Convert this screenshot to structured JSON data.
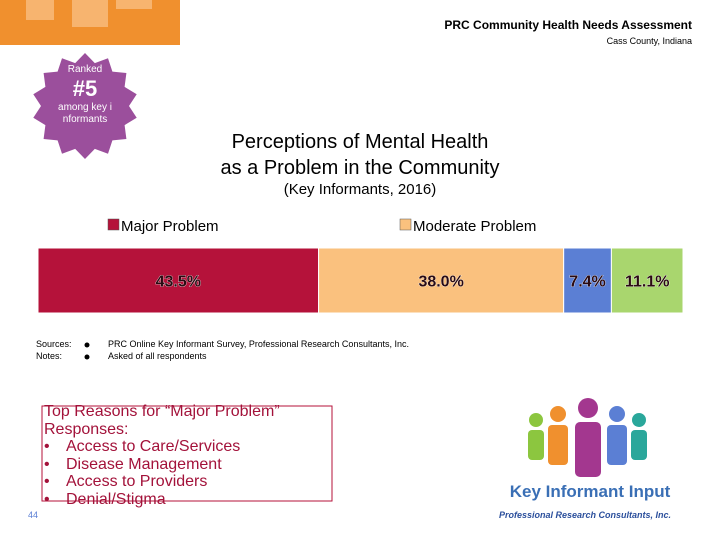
{
  "header": {
    "title": "PRC Community Health Needs Assessment",
    "location": "Cass County, Indiana"
  },
  "badge": {
    "ranked": "Ranked",
    "rank": "#5",
    "text": "among key informants"
  },
  "chart_data": {
    "type": "bar",
    "orientation": "horizontal",
    "stacked": true,
    "title_lines": [
      "Perceptions of Mental Health",
      "as a Problem in the Community"
    ],
    "subtitle": "(Key Informants, 2016)",
    "xlim": [
      0,
      100
    ],
    "series": [
      {
        "name": "Major Problem",
        "color": "#b5123a",
        "values": [
          43.5
        ],
        "value_labels": [
          "43.5%"
        ]
      },
      {
        "name": "Moderate Problem",
        "color": "#fac17e",
        "values": [
          38.0
        ],
        "value_labels": [
          "38.0%"
        ]
      },
      {
        "color": "#5b7fd4",
        "values": [
          7.4
        ],
        "value_labels": [
          "7.4%"
        ]
      },
      {
        "color": "#a9d66e",
        "values": [
          11.1
        ],
        "value_labels": [
          "11.1%"
        ]
      }
    ]
  },
  "notes": {
    "sources_label": "Sources:",
    "sources": "PRC Online Key Informant Survey, Professional Research Consultants, Inc.",
    "notes_label": "Notes:",
    "notes": "Asked of all respondents"
  },
  "reasons": {
    "heading": "Top Reasons for “Major Problem” Responses:",
    "items": [
      "Access to Care/Services",
      "Disease Management",
      "Access to Providers",
      "Denial/Stigma"
    ]
  },
  "page_number": "44",
  "logo": {
    "caption": "Key Informant Input",
    "company": "Professional Research Consultants, Inc."
  }
}
